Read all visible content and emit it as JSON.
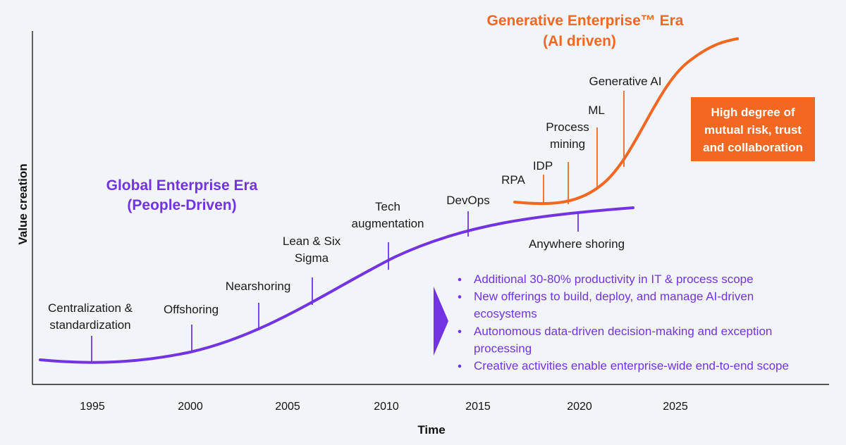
{
  "colors": {
    "global": "#7233e3",
    "generative": "#f26722",
    "axis": "#222222",
    "background": "#f1f4f8"
  },
  "axes": {
    "x_title": "Time",
    "y_title": "Value creation",
    "x_ticks": [
      "1995",
      "2000",
      "2005",
      "2010",
      "2015",
      "2020",
      "2025"
    ]
  },
  "global_era": {
    "title_line1": "Global Enterprise Era",
    "title_line2": "(People-Driven)",
    "markers": [
      {
        "lines": [
          "Centralization &",
          "standardization"
        ]
      },
      {
        "lines": [
          "Offshoring"
        ]
      },
      {
        "lines": [
          "Nearshoring"
        ]
      },
      {
        "lines": [
          "Lean & Six",
          "Sigma"
        ]
      },
      {
        "lines": [
          "Tech",
          "augmentation"
        ]
      },
      {
        "lines": [
          "DevOps"
        ]
      },
      {
        "lines": [
          "Anywhere shoring"
        ]
      }
    ]
  },
  "generative_era": {
    "title_line1": "Generative Enterprise™ Era",
    "title_line2": "(AI driven)",
    "markers": [
      {
        "lines": [
          "RPA"
        ]
      },
      {
        "lines": [
          "IDP"
        ]
      },
      {
        "lines": [
          "Process",
          "mining"
        ]
      },
      {
        "lines": [
          "ML"
        ]
      },
      {
        "lines": [
          "Generative AI"
        ]
      }
    ],
    "callout": [
      "High degree of",
      "mutual risk, trust",
      "and collaboration"
    ]
  },
  "benefits": [
    [
      "Additional 30-80% productivity in IT & process scope"
    ],
    [
      "New offerings to build, deploy, and manage AI-driven",
      "ecosystems"
    ],
    [
      "Autonomous data-driven decision-making and exception",
      "processing"
    ],
    [
      "Creative activities enable enterprise-wide end-to-end scope"
    ]
  ]
}
